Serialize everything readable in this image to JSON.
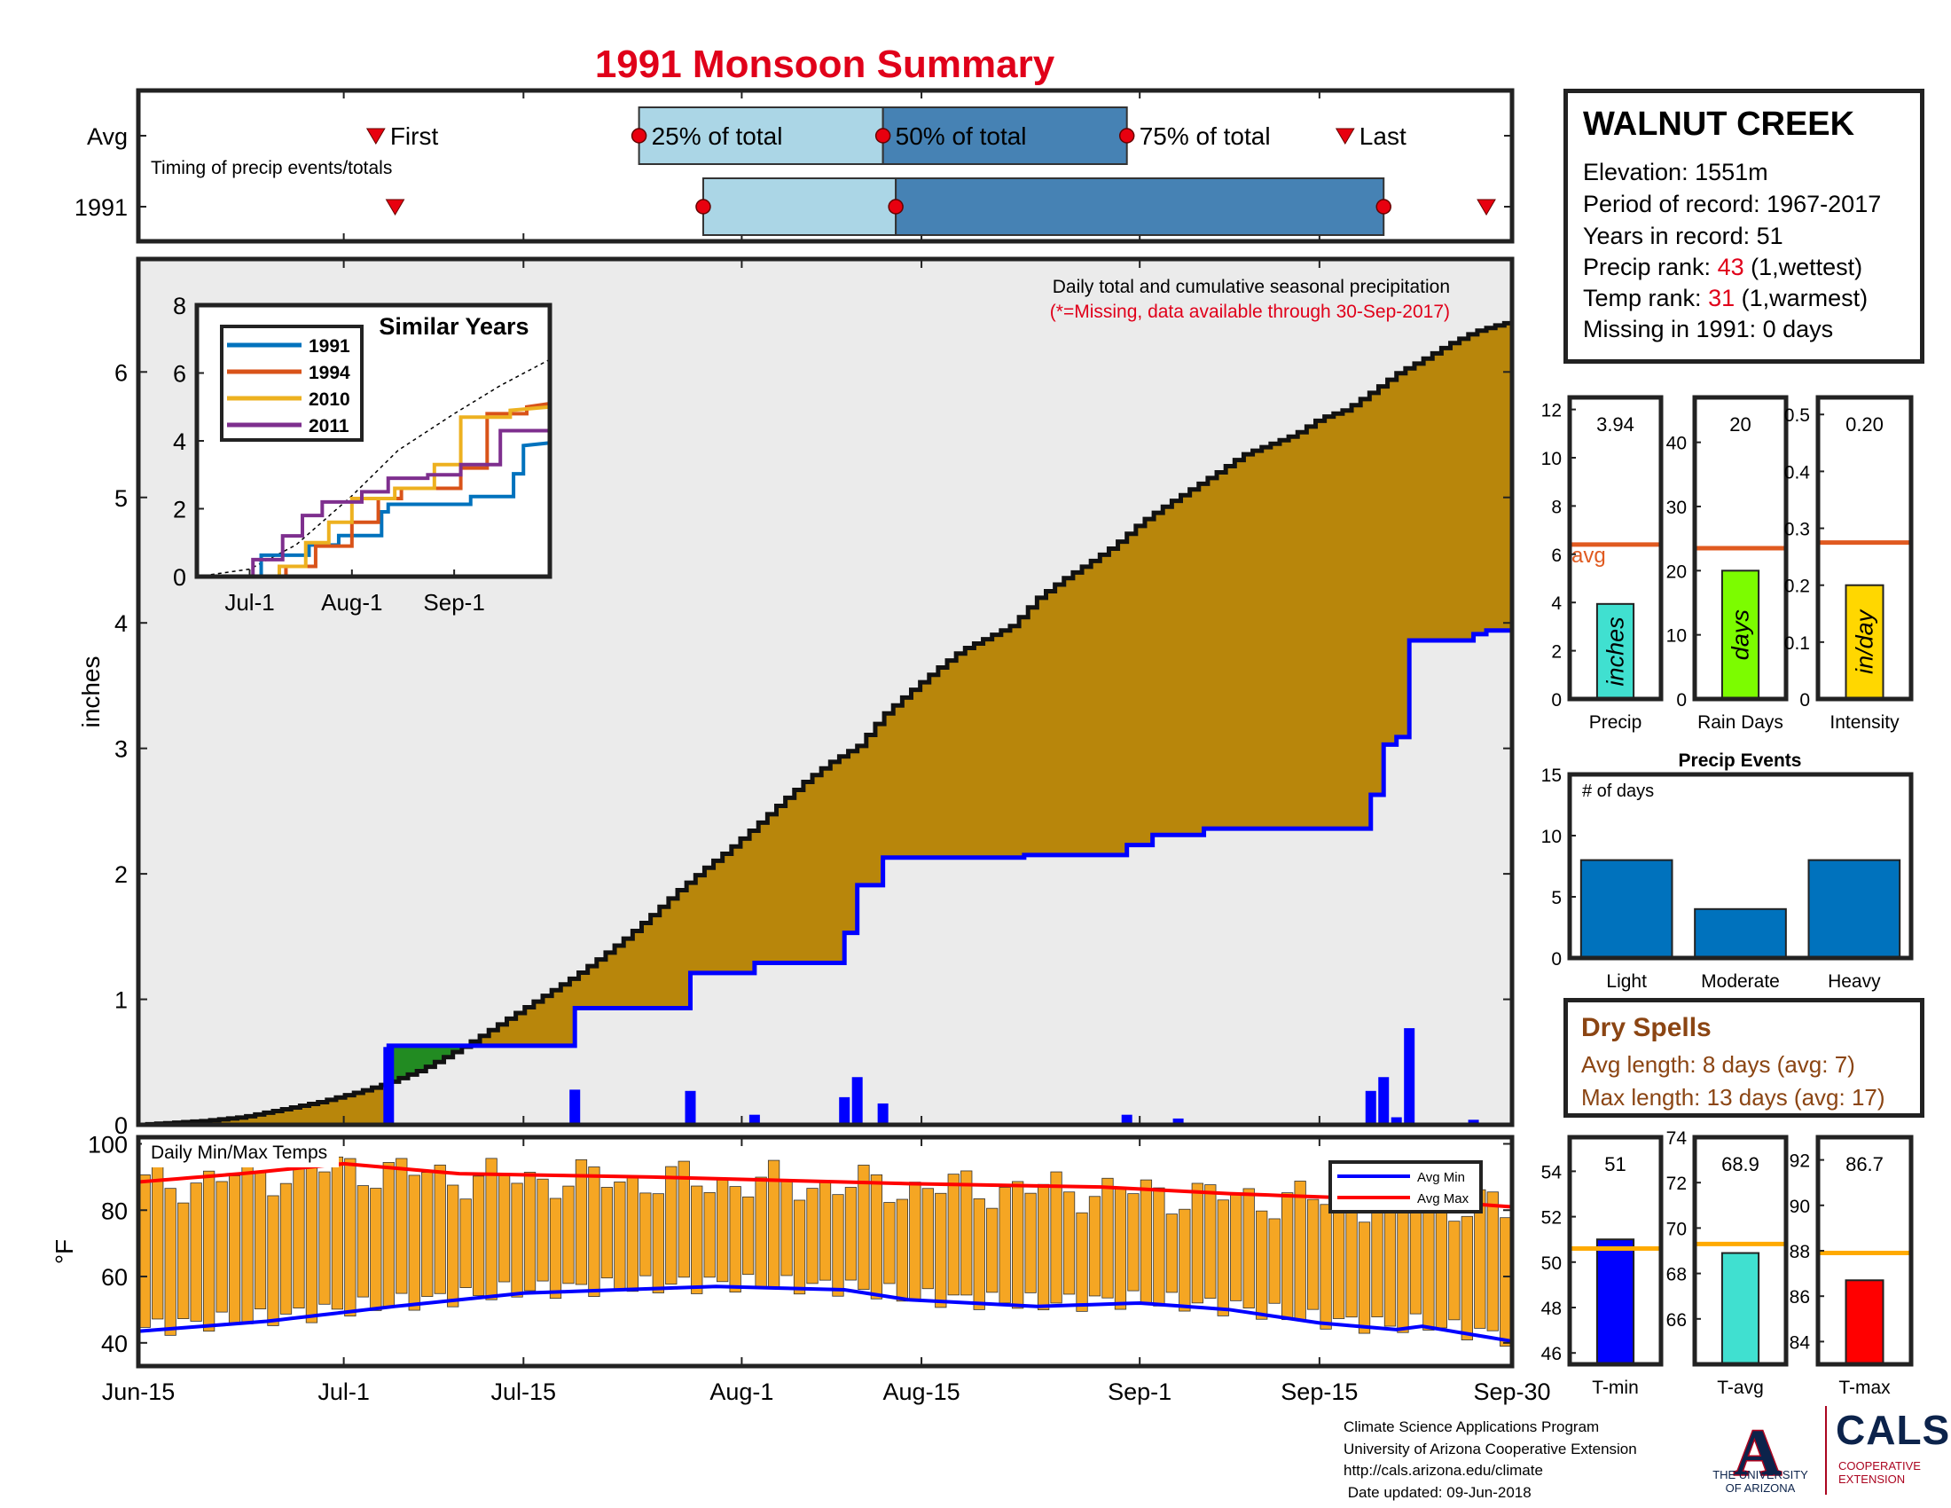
{
  "title": "1991 Monsoon Summary",
  "colors": {
    "title_red": "#e0001a",
    "accum_gold": "#b8860b",
    "year_blue": "#0000ff",
    "early_green": "#228b22",
    "fill_gray": "#ebebeb",
    "light_box": "#abd6e6",
    "dark_box": "#4682b4",
    "temp_bar": "#f5a623",
    "avg_orange": "#e05a20",
    "avg_line_orange": "#ffaa00",
    "dry_brown": "#8b4513"
  },
  "station": {
    "name": "WALNUT CREEK",
    "elevation": "Elevation: 1551m",
    "period": "Period of record: 1967-2017",
    "years": "Years in record: 51",
    "precip_rank_label": "Precip rank: ",
    "precip_rank_value": "43",
    "precip_rank_suffix": " (1,wettest)",
    "temp_rank_label": "Temp rank: ",
    "temp_rank_value": "31",
    "temp_rank_suffix": " (1,warmest)",
    "missing": "Missing in 1991: 0 days"
  },
  "dry_spells": {
    "title": "Dry Spells",
    "avg": "Avg length: 8 days (avg: 7)",
    "max": "Max length: 13 days (avg: 17)"
  },
  "credits": {
    "line1": "Climate Science Applications Program",
    "line2": "University of Arizona Cooperative Extension",
    "line3": "http://cals.arizona.edu/climate",
    "line4": " Date updated: 09-Jun-2018"
  },
  "logos": {
    "ua_letter": "A",
    "ua_line1": "THE UNIVERSITY",
    "ua_line2": "OF ARIZONA",
    "cals": "CALS",
    "coop_line1": "COOPERATIVE",
    "coop_line2": "EXTENSION"
  },
  "chart_data": [
    {
      "id": "timing",
      "type": "box",
      "note": "Timing of precip events/totals",
      "rows": [
        "Avg",
        "1991"
      ],
      "x_domain_days": [
        0,
        107
      ],
      "avg": {
        "first": 18.5,
        "p25": 39,
        "p50": 58,
        "p75": 77,
        "last": 94
      },
      "year": {
        "first": 20,
        "p25": 44,
        "p50": 59,
        "p75": 97,
        "last": 105
      },
      "labels": {
        "first": "First",
        "p25": "25% of total",
        "p50": "50% of total",
        "p75": "75% of total",
        "last": "Last"
      }
    },
    {
      "id": "precip",
      "type": "area",
      "title": "Daily total and cumulative seasonal precipitation",
      "subtitle": "(*=Missing, data available through 30-Sep-2017)",
      "ylabel": "inches",
      "ylim": [
        0,
        6.9
      ],
      "yticks": [
        0,
        1,
        2,
        3,
        4,
        5,
        6
      ],
      "xlim_days": [
        0,
        107
      ],
      "xticks": [
        {
          "label": "Jun-15",
          "day": 0
        },
        {
          "label": "Jul-1",
          "day": 16
        },
        {
          "label": "Jul-15",
          "day": 30
        },
        {
          "label": "Aug-1",
          "day": 47
        },
        {
          "label": "Aug-15",
          "day": 61
        },
        {
          "label": "Sep-1",
          "day": 78
        },
        {
          "label": "Sep-15",
          "day": 92
        },
        {
          "label": "Sep-30",
          "day": 107
        }
      ],
      "avg_cumulative": [
        [
          0,
          0
        ],
        [
          5,
          0.03
        ],
        [
          8,
          0.06
        ],
        [
          11,
          0.12
        ],
        [
          14,
          0.18
        ],
        [
          17,
          0.26
        ],
        [
          19,
          0.32
        ],
        [
          20,
          0.36
        ],
        [
          22,
          0.44
        ],
        [
          24,
          0.55
        ],
        [
          26,
          0.67
        ],
        [
          28,
          0.8
        ],
        [
          30,
          0.93
        ],
        [
          32,
          1.06
        ],
        [
          34,
          1.19
        ],
        [
          36,
          1.34
        ],
        [
          38,
          1.5
        ],
        [
          40,
          1.68
        ],
        [
          42,
          1.87
        ],
        [
          44,
          2.04
        ],
        [
          46,
          2.2
        ],
        [
          48,
          2.38
        ],
        [
          50,
          2.57
        ],
        [
          52,
          2.75
        ],
        [
          54,
          2.9
        ],
        [
          56,
          3.02
        ],
        [
          58,
          3.27
        ],
        [
          60,
          3.45
        ],
        [
          62,
          3.62
        ],
        [
          64,
          3.78
        ],
        [
          66,
          3.88
        ],
        [
          68,
          3.98
        ],
        [
          70,
          4.2
        ],
        [
          72,
          4.35
        ],
        [
          74,
          4.48
        ],
        [
          76,
          4.62
        ],
        [
          78,
          4.8
        ],
        [
          80,
          4.94
        ],
        [
          82,
          5.07
        ],
        [
          84,
          5.2
        ],
        [
          86,
          5.34
        ],
        [
          88,
          5.42
        ],
        [
          90,
          5.5
        ],
        [
          92,
          5.63
        ],
        [
          94,
          5.7
        ],
        [
          96,
          5.84
        ],
        [
          98,
          5.99
        ],
        [
          100,
          6.1
        ],
        [
          102,
          6.22
        ],
        [
          104,
          6.32
        ],
        [
          106,
          6.38
        ],
        [
          107,
          6.4
        ]
      ],
      "year_cumulative": [
        [
          0,
          0
        ],
        [
          19.5,
          0
        ],
        [
          19.5,
          0.63
        ],
        [
          34,
          0.63
        ],
        [
          34,
          0.93
        ],
        [
          43,
          0.93
        ],
        [
          43,
          1.21
        ],
        [
          48,
          1.21
        ],
        [
          48,
          1.29
        ],
        [
          55,
          1.29
        ],
        [
          55,
          1.53
        ],
        [
          56,
          1.53
        ],
        [
          56,
          1.91
        ],
        [
          58,
          1.91
        ],
        [
          58,
          2.13
        ],
        [
          69,
          2.13
        ],
        [
          69,
          2.15
        ],
        [
          77,
          2.15
        ],
        [
          77,
          2.23
        ],
        [
          79,
          2.23
        ],
        [
          79,
          2.31
        ],
        [
          83,
          2.31
        ],
        [
          83,
          2.36
        ],
        [
          96,
          2.36
        ],
        [
          96,
          2.63
        ],
        [
          97,
          2.63
        ],
        [
          97,
          3.03
        ],
        [
          98,
          3.03
        ],
        [
          98,
          3.09
        ],
        [
          99,
          3.09
        ],
        [
          99,
          3.86
        ],
        [
          104,
          3.86
        ],
        [
          104,
          3.91
        ],
        [
          105,
          3.91
        ],
        [
          105,
          3.94
        ],
        [
          107,
          3.94
        ]
      ],
      "daily": [
        [
          19.5,
          0.62
        ],
        [
          34,
          0.28
        ],
        [
          43,
          0.27
        ],
        [
          48,
          0.08
        ],
        [
          55,
          0.22
        ],
        [
          56,
          0.38
        ],
        [
          58,
          0.17
        ],
        [
          77,
          0.08
        ],
        [
          81,
          0.05
        ],
        [
          96,
          0.27
        ],
        [
          97,
          0.38
        ],
        [
          98,
          0.06
        ],
        [
          99,
          0.77
        ],
        [
          104,
          0.04
        ]
      ],
      "inset": {
        "title": "Similar Years",
        "ylim": [
          0,
          8
        ],
        "yticks": [
          0,
          2,
          4,
          6,
          8
        ],
        "xticks": [
          {
            "label": "Jul-1",
            "day": 16
          },
          {
            "label": "Aug-1",
            "day": 47
          },
          {
            "label": "Sep-1",
            "day": 78
          }
        ],
        "series": [
          {
            "name": "1991",
            "color": "#0072bd",
            "points": [
              [
                0,
                0
              ],
              [
                19.5,
                0
              ],
              [
                19.5,
                0.63
              ],
              [
                34,
                0.63
              ],
              [
                34,
                0.93
              ],
              [
                43,
                0.93
              ],
              [
                43,
                1.21
              ],
              [
                56,
                1.21
              ],
              [
                56,
                1.91
              ],
              [
                58,
                1.91
              ],
              [
                58,
                2.13
              ],
              [
                83,
                2.13
              ],
              [
                83,
                2.36
              ],
              [
                96,
                2.36
              ],
              [
                96,
                3.03
              ],
              [
                99,
                3.03
              ],
              [
                99,
                3.86
              ],
              [
                107,
                3.94
              ]
            ]
          },
          {
            "name": "1994",
            "color": "#d95319",
            "points": [
              [
                0,
                0
              ],
              [
                27,
                0
              ],
              [
                27,
                0.3
              ],
              [
                36,
                0.3
              ],
              [
                36,
                0.9
              ],
              [
                47,
                0.9
              ],
              [
                47,
                1.6
              ],
              [
                55,
                1.6
              ],
              [
                55,
                2.3
              ],
              [
                62,
                2.3
              ],
              [
                62,
                2.6
              ],
              [
                80,
                2.6
              ],
              [
                80,
                3.2
              ],
              [
                88,
                3.2
              ],
              [
                88,
                4.8
              ],
              [
                100,
                4.8
              ],
              [
                100,
                5.0
              ],
              [
                107,
                5.1
              ]
            ]
          },
          {
            "name": "2010",
            "color": "#edb120",
            "points": [
              [
                0,
                0
              ],
              [
                25,
                0
              ],
              [
                25,
                0.3
              ],
              [
                33,
                0.3
              ],
              [
                33,
                1.0
              ],
              [
                40,
                1.0
              ],
              [
                40,
                1.6
              ],
              [
                47,
                1.6
              ],
              [
                47,
                2.3
              ],
              [
                60,
                2.3
              ],
              [
                60,
                2.6
              ],
              [
                72,
                2.6
              ],
              [
                72,
                3.3
              ],
              [
                80,
                3.3
              ],
              [
                80,
                4.7
              ],
              [
                95,
                4.7
              ],
              [
                95,
                4.9
              ],
              [
                107,
                5.0
              ]
            ]
          },
          {
            "name": "2011",
            "color": "#7e2f8e",
            "points": [
              [
                0,
                0
              ],
              [
                17,
                0
              ],
              [
                17,
                0.5
              ],
              [
                26,
                0.5
              ],
              [
                26,
                1.2
              ],
              [
                32,
                1.2
              ],
              [
                32,
                1.8
              ],
              [
                38,
                1.8
              ],
              [
                38,
                2.2
              ],
              [
                50,
                2.2
              ],
              [
                50,
                2.5
              ],
              [
                58,
                2.5
              ],
              [
                58,
                2.9
              ],
              [
                70,
                2.9
              ],
              [
                70,
                3.0
              ],
              [
                80,
                3.0
              ],
              [
                80,
                3.3
              ],
              [
                92,
                3.3
              ],
              [
                92,
                4.3
              ],
              [
                107,
                4.3
              ]
            ]
          }
        ],
        "avg_points": [
          [
            0,
            0
          ],
          [
            16,
            0.22
          ],
          [
            30,
            0.93
          ],
          [
            47,
            2.38
          ],
          [
            61,
            3.72
          ],
          [
            78,
            4.8
          ],
          [
            92,
            5.63
          ],
          [
            107,
            6.4
          ]
        ]
      }
    },
    {
      "id": "temps",
      "type": "bar",
      "title": "Daily Min/Max Temps",
      "ylabel": "°F",
      "ylim": [
        33,
        102
      ],
      "yticks": [
        40,
        60,
        80,
        100
      ],
      "legend": [
        "Avg Min",
        "Avg Max"
      ],
      "legend_position": "top-right",
      "avg_min_points": [
        [
          0,
          43.5
        ],
        [
          10,
          46.5
        ],
        [
          20,
          51
        ],
        [
          30,
          55
        ],
        [
          45,
          57
        ],
        [
          55,
          56
        ],
        [
          60,
          53
        ],
        [
          70,
          51
        ],
        [
          78,
          52
        ],
        [
          85,
          50
        ],
        [
          92,
          46
        ],
        [
          98,
          44
        ],
        [
          100,
          45
        ],
        [
          107,
          40.5
        ]
      ],
      "avg_max_points": [
        [
          0,
          88.5
        ],
        [
          8,
          91
        ],
        [
          16,
          94
        ],
        [
          25,
          91
        ],
        [
          40,
          90
        ],
        [
          60,
          88
        ],
        [
          75,
          87
        ],
        [
          85,
          85
        ],
        [
          92,
          84
        ],
        [
          100,
          83
        ],
        [
          107,
          81
        ]
      ]
    },
    {
      "id": "stats",
      "type": "bar",
      "panels": [
        {
          "label": "Precip",
          "value": 3.94,
          "display": "3.94",
          "avg": 6.4,
          "avg_text": "avg",
          "unit": "inches",
          "ylim": [
            0,
            12.5
          ],
          "yticks": [
            0,
            2,
            4,
            6,
            8,
            10,
            12
          ],
          "color": "#40e0d0"
        },
        {
          "label": "Rain Days",
          "value": 20,
          "display": "20",
          "avg": 23.5,
          "unit": "days",
          "ylim": [
            0,
            47
          ],
          "yticks": [
            0,
            10,
            20,
            30,
            40
          ],
          "color": "#7cfc00"
        },
        {
          "label": "Intensity",
          "value": 0.2,
          "display": "0.20",
          "avg": 0.275,
          "unit": "in/day",
          "ylim": [
            0,
            0.53
          ],
          "yticks": [
            0,
            0.1,
            0.2,
            0.3,
            0.4,
            0.5
          ],
          "color": "#ffd700"
        }
      ]
    },
    {
      "id": "events",
      "type": "bar",
      "title": "Precip Events",
      "ylabel_note": "# of days",
      "categories": [
        "Light",
        "Moderate",
        "Heavy"
      ],
      "values": [
        8,
        4,
        8
      ],
      "ylim": [
        0,
        15
      ],
      "yticks": [
        0,
        5,
        10,
        15
      ],
      "color": "#0072bd"
    },
    {
      "id": "temp_stats",
      "type": "bar",
      "panels": [
        {
          "label": "T-min",
          "value": 51,
          "display": "51",
          "avg": 50.6,
          "ylim": [
            45.5,
            55.5
          ],
          "yticks": [
            46,
            48,
            50,
            52,
            54
          ],
          "color": "#0000ff"
        },
        {
          "label": "T-avg",
          "value": 68.9,
          "display": "68.9",
          "avg": 69.3,
          "ylim": [
            64,
            74
          ],
          "yticks": [
            66,
            68,
            70,
            72,
            74
          ],
          "color": "#40e0d0"
        },
        {
          "label": "T-max",
          "value": 86.7,
          "display": "86.7",
          "avg": 87.9,
          "ylim": [
            83,
            93
          ],
          "yticks": [
            84,
            86,
            88,
            90,
            92
          ],
          "color": "#ff0000"
        }
      ]
    }
  ]
}
